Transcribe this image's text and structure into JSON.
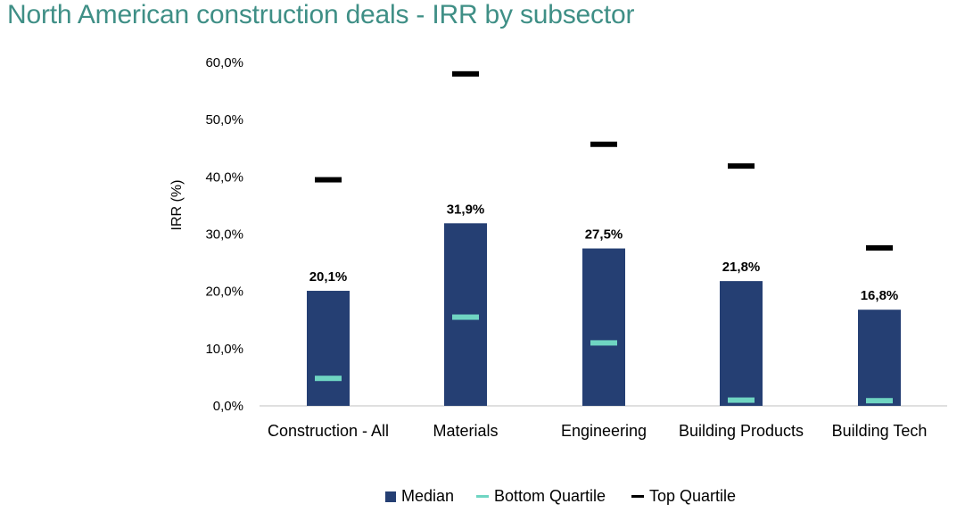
{
  "title": "North American construction deals - IRR by subsector",
  "colors": {
    "title": "#3f8f86",
    "median": "#253f73",
    "bottom": "#6fd5c2",
    "top": "#000000"
  },
  "chart_data": {
    "type": "bar",
    "title": "North American construction deals - IRR by subsector",
    "xlabel": "",
    "ylabel": "IRR (%)",
    "ylim": [
      0,
      60
    ],
    "yticks": [
      "0,0%",
      "10,0%",
      "20,0%",
      "30,0%",
      "40,0%",
      "50,0%",
      "60,0%"
    ],
    "categories": [
      "Construction - All",
      "Materials",
      "Engineering",
      "Building Products",
      "Building Tech"
    ],
    "series": [
      {
        "name": "Median",
        "kind": "bar",
        "values": [
          20.1,
          31.9,
          27.5,
          21.8,
          16.8
        ],
        "labels": [
          "20,1%",
          "31,9%",
          "27,5%",
          "21,8%",
          "16,8%"
        ]
      },
      {
        "name": "Bottom Quartile",
        "kind": "marker",
        "values": [
          4.8,
          15.5,
          11.0,
          1.0,
          0.9
        ]
      },
      {
        "name": "Top Quartile",
        "kind": "marker",
        "values": [
          39.5,
          58.0,
          45.7,
          41.9,
          27.6
        ]
      }
    ],
    "grid": false,
    "legend": "bottom"
  }
}
